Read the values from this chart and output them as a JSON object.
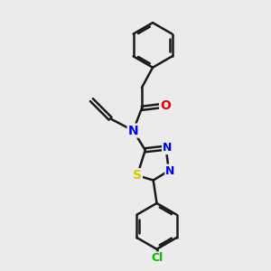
{
  "background_color": "#ebebeb",
  "bond_color": "#1a1a1a",
  "bond_width": 1.8,
  "atom_colors": {
    "N": "#0000ee",
    "O": "#ee0000",
    "S": "#cccc00",
    "Cl": "#00bb00",
    "C": "#1a1a1a"
  },
  "figsize": [
    3.0,
    3.0
  ],
  "dpi": 100
}
